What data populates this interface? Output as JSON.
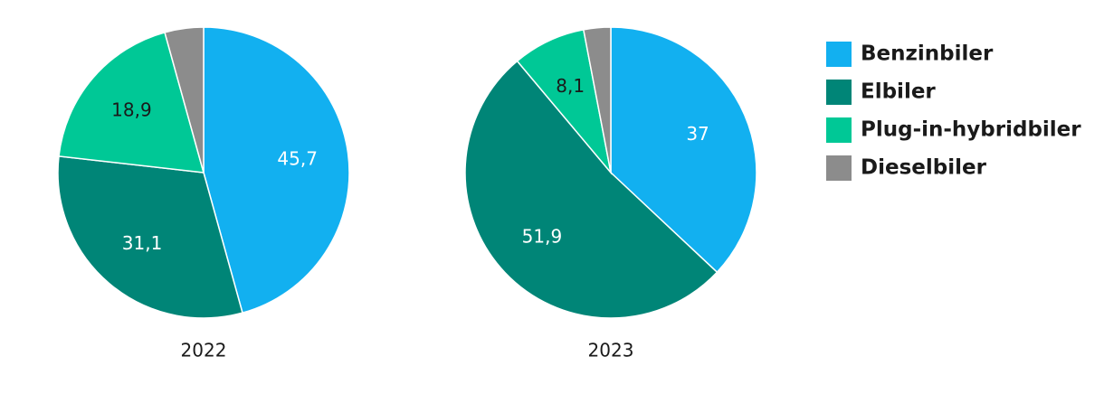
{
  "chart_data": {
    "type": "pie",
    "categories": [
      "Benzinbiler",
      "Elbiler",
      "Plug-in-hybridbiler",
      "Dieselbiler"
    ],
    "colors": [
      "#12b0f0",
      "#008577",
      "#00c896",
      "#8c8c8c"
    ],
    "label_colors": [
      "#ffffff",
      "#ffffff",
      "#1a1a1a",
      "#1a1a1a"
    ],
    "series": [
      {
        "name": "2022",
        "values": [
          45.7,
          31.1,
          18.9,
          4.3
        ],
        "value_labels": [
          "45,7",
          "31,1",
          "18,9",
          null
        ]
      },
      {
        "name": "2023",
        "values": [
          37,
          51.9,
          8.1,
          3.0
        ],
        "value_labels": [
          "37",
          "51,9",
          "8,1",
          null
        ]
      }
    ]
  }
}
